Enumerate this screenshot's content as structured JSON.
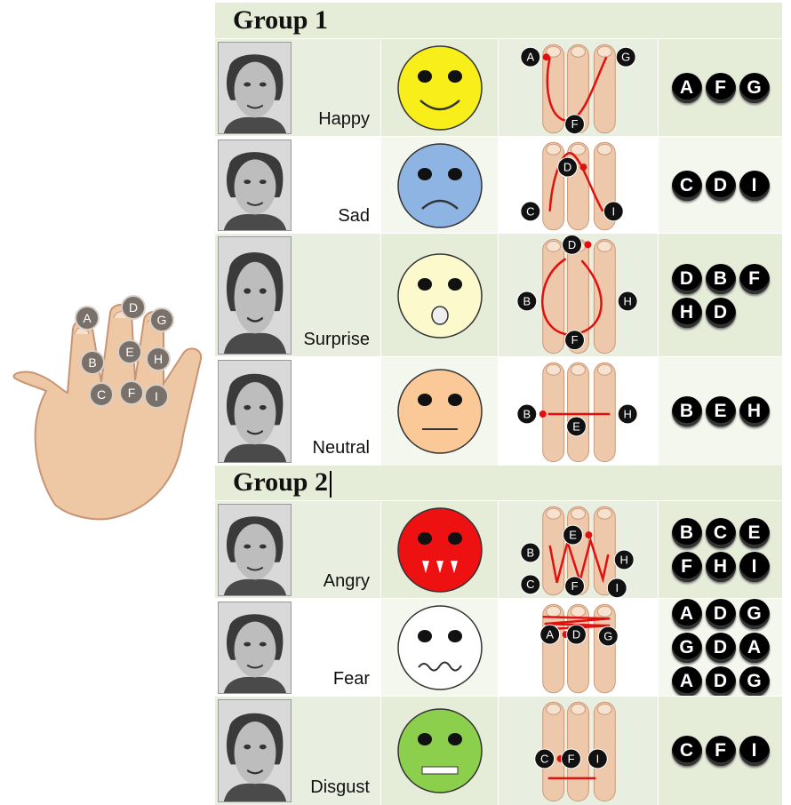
{
  "hand_labels": [
    "A",
    "B",
    "C",
    "D",
    "E",
    "F",
    "G",
    "H",
    "I"
  ],
  "groups": [
    {
      "title": "Group 1",
      "rows": [
        {
          "emotion": "Happy",
          "face_color": "#f7ee1a",
          "face_icon": "smile-face-icon",
          "finger_labels": [
            "A",
            "G",
            "F"
          ],
          "code": [
            "A",
            "F",
            "G"
          ]
        },
        {
          "emotion": "Sad",
          "face_color": "#8eb4e3",
          "face_icon": "frown-face-icon",
          "finger_labels": [
            "D",
            "C",
            "I"
          ],
          "code": [
            "C",
            "D",
            "I"
          ]
        },
        {
          "emotion": "Surprise",
          "face_color": "#fcfacd",
          "face_icon": "open-mouth-face-icon",
          "finger_labels": [
            "D",
            "B",
            "H",
            "F"
          ],
          "code": [
            "D",
            "B",
            "F",
            "H",
            "D"
          ]
        },
        {
          "emotion": "Neutral",
          "face_color": "#fbc898",
          "face_icon": "neutral-face-icon",
          "finger_labels": [
            "B",
            "E",
            "H"
          ],
          "code": [
            "B",
            "E",
            "H"
          ]
        }
      ]
    },
    {
      "title": "Group 2",
      "rows": [
        {
          "emotion": "Angry",
          "face_color": "#ee1111",
          "face_icon": "angry-fangs-face-icon",
          "finger_labels": [
            "E",
            "B",
            "H",
            "C",
            "F",
            "I"
          ],
          "code": [
            "B",
            "C",
            "E",
            "F",
            "H",
            "I"
          ]
        },
        {
          "emotion": "Fear",
          "face_color": "#ffffff",
          "face_icon": "fear-face-icon",
          "finger_labels": [
            "A",
            "D",
            "G"
          ],
          "code": [
            "A",
            "D",
            "G",
            "G",
            "D",
            "A",
            "A",
            "D",
            "G"
          ]
        },
        {
          "emotion": "Disgust",
          "face_color": "#8ccf4c",
          "face_icon": "disgust-face-icon",
          "finger_labels": [
            "C",
            "F",
            "I"
          ],
          "code": [
            "C",
            "F",
            "I"
          ]
        }
      ]
    }
  ]
}
